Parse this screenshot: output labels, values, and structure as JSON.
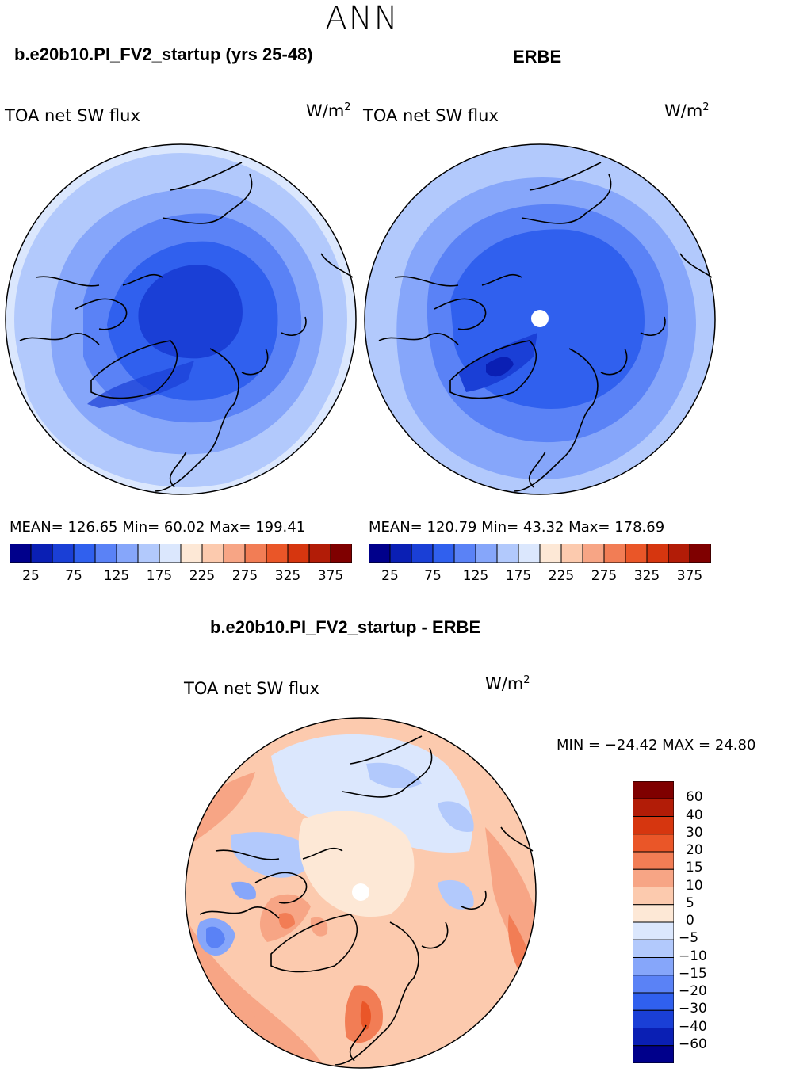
{
  "season": "ANN",
  "left_panel": {
    "case_title": "b.e20b10.PI_FV2_startup (yrs 25-48)",
    "variable": "TOA net SW flux",
    "units_base": "W/m",
    "units_exp": "2",
    "stats": "MEAN= 126.65   Min=   60.02   Max= 199.41"
  },
  "right_panel": {
    "case_title": "ERBE",
    "variable": "TOA net SW flux",
    "units_base": "W/m",
    "units_exp": "2",
    "stats": "MEAN= 120.79   Min=   43.32   Max= 178.69"
  },
  "colorbar_top": {
    "colors": [
      "#00008b",
      "#0a1fb4",
      "#1a3fd6",
      "#3060ee",
      "#5a82f6",
      "#86a6fa",
      "#b2c9fc",
      "#dbe7fd",
      "#fde8d6",
      "#fccaae",
      "#f7a585",
      "#f27d55",
      "#ea5628",
      "#d6360f",
      "#b21c07",
      "#7f0000"
    ],
    "labels": [
      "25",
      "75",
      "125",
      "175",
      "225",
      "275",
      "325",
      "375"
    ]
  },
  "diff_panel": {
    "title": "b.e20b10.PI_FV2_startup - ERBE",
    "variable": "TOA net SW flux",
    "units_base": "W/m",
    "units_exp": "2",
    "min_max": "MIN = −24.42 MAX =  24.80"
  },
  "colorbar_diff": {
    "colors": [
      "#7f0000",
      "#b21c07",
      "#d6360f",
      "#ea5628",
      "#f27d55",
      "#f7a585",
      "#fccaae",
      "#fde8d6",
      "#dbe7fd",
      "#b2c9fc",
      "#86a6fa",
      "#5a82f6",
      "#3060ee",
      "#1a3fd6",
      "#0a1fb4",
      "#00008b"
    ],
    "labels": [
      "60",
      "40",
      "30",
      "20",
      "15",
      "10",
      "5",
      "0",
      "−5",
      "−10",
      "−15",
      "−20",
      "−30",
      "−40",
      "−60"
    ]
  }
}
